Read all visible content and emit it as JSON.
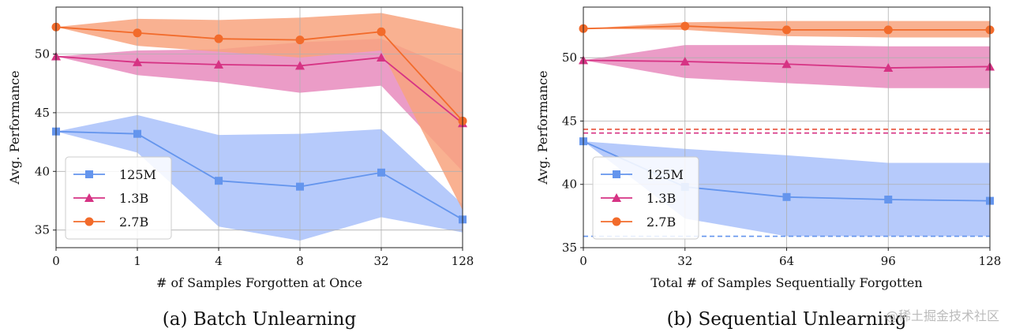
{
  "watermark": "@稀土掘金技术社区",
  "chart_data": [
    {
      "type": "line",
      "caption": "(a) Batch Unlearning",
      "xlabel": "# of Samples Forgotten at Once",
      "ylabel": "Avg. Performance",
      "x_categories": [
        "0",
        "1",
        "4",
        "8",
        "32",
        "128"
      ],
      "ylim": [
        33.5,
        54
      ],
      "yticks": [
        35,
        40,
        45,
        50
      ],
      "grid": true,
      "legend_position": "lower-left",
      "series": [
        {
          "name": "125M",
          "marker": "square",
          "color": "#6495ED",
          "fill": "#a9c1fa",
          "values": [
            43.4,
            43.2,
            39.2,
            38.7,
            39.9,
            35.9
          ],
          "lower": [
            43.4,
            41.6,
            35.3,
            34.1,
            36.1,
            34.8
          ],
          "upper": [
            43.4,
            44.8,
            43.1,
            43.2,
            43.6,
            37.2
          ]
        },
        {
          "name": "1.3B",
          "marker": "triangle",
          "color": "#D63384",
          "fill": "#e88bbd",
          "values": [
            49.8,
            49.3,
            49.1,
            49.0,
            49.7,
            44.1
          ],
          "lower": [
            49.8,
            48.2,
            47.6,
            46.7,
            47.3,
            40.0
          ],
          "upper": [
            49.8,
            50.3,
            50.4,
            51.0,
            51.3,
            48.4
          ]
        },
        {
          "name": "2.7B",
          "marker": "circle",
          "color": "#F26B2B",
          "fill": "#f8a37e",
          "values": [
            52.3,
            51.8,
            51.3,
            51.2,
            51.9,
            44.3
          ],
          "lower": [
            52.3,
            50.7,
            50.2,
            49.7,
            50.3,
            36.7
          ],
          "upper": [
            52.3,
            53.0,
            52.9,
            53.1,
            53.5,
            52.1
          ]
        }
      ]
    },
    {
      "type": "line",
      "caption": "(b) Sequential Unlearning",
      "xlabel": "Total # of Samples Sequentially Forgotten",
      "ylabel": "Avg. Performance",
      "x_categories": [
        "0",
        "32",
        "64",
        "96",
        "128"
      ],
      "ylim": [
        35,
        54
      ],
      "yticks": [
        35,
        40,
        45,
        50
      ],
      "grid": true,
      "legend_position": "lower-left",
      "series": [
        {
          "name": "125M",
          "marker": "square",
          "color": "#6495ED",
          "fill": "#a9c1fa",
          "values": [
            43.4,
            39.8,
            39.0,
            38.8,
            38.7
          ],
          "lower": [
            43.4,
            37.3,
            35.9,
            35.9,
            35.9
          ],
          "upper": [
            43.4,
            42.8,
            42.3,
            41.7,
            41.7
          ]
        },
        {
          "name": "1.3B",
          "marker": "triangle",
          "color": "#D63384",
          "fill": "#e88bbd",
          "values": [
            49.8,
            49.7,
            49.5,
            49.2,
            49.3
          ],
          "lower": [
            49.8,
            48.4,
            48.0,
            47.6,
            47.6
          ],
          "upper": [
            49.8,
            51.0,
            51.0,
            50.9,
            50.9
          ]
        },
        {
          "name": "2.7B",
          "marker": "circle",
          "color": "#F26B2B",
          "fill": "#f8a37e",
          "values": [
            52.3,
            52.5,
            52.2,
            52.2,
            52.2
          ],
          "lower": [
            52.3,
            52.2,
            51.7,
            51.6,
            51.6
          ],
          "upper": [
            52.3,
            52.8,
            52.9,
            52.9,
            52.9
          ]
        }
      ],
      "reference_lines": [
        {
          "value": 44.35,
          "color": "#E8503A",
          "style": "dashed"
        },
        {
          "value": 44.05,
          "color": "#D63384",
          "style": "dashed"
        },
        {
          "value": 35.9,
          "color": "#6495ED",
          "style": "dashed"
        }
      ]
    }
  ]
}
